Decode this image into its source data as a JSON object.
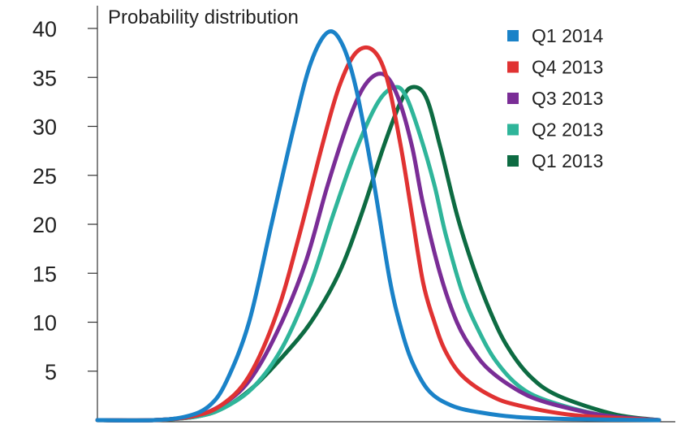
{
  "chart_data": {
    "type": "line",
    "title": "Probability distribution",
    "xlabel": "",
    "ylabel": "",
    "ylim": [
      0,
      40
    ],
    "xlim": [
      0,
      100
    ],
    "yticks": [
      5,
      10,
      15,
      20,
      25,
      30,
      35,
      40
    ],
    "ytick_labels": [
      "5",
      "10",
      "15",
      "20",
      "25",
      "30",
      "35",
      "40"
    ],
    "legend_position": "top-right",
    "grid": false,
    "series": [
      {
        "name": "Q1 2014",
        "color": "#1a82c8",
        "x": [
          0,
          10,
          16,
          20,
          23,
          27,
          31,
          35,
          38,
          41,
          43.5,
          46,
          49,
          52,
          54,
          56,
          59,
          63,
          68,
          75,
          85,
          100
        ],
        "y": [
          0,
          0,
          0.4,
          1.5,
          4,
          10,
          20,
          30,
          36.5,
          39.6,
          38.5,
          34,
          25,
          14.5,
          9.5,
          6,
          3,
          1.5,
          0.8,
          0.3,
          0.1,
          0
        ]
      },
      {
        "name": "Q4 2013",
        "color": "#e03232",
        "x": [
          0,
          10,
          17,
          22,
          27,
          32,
          36,
          40,
          43,
          46,
          49,
          51.5,
          54,
          56,
          58,
          60,
          62,
          65,
          70,
          75,
          85,
          100
        ],
        "y": [
          0,
          0,
          0.4,
          1.5,
          4.5,
          11,
          19,
          28,
          34,
          37.5,
          37.8,
          35,
          28,
          21,
          14,
          10,
          7,
          4.5,
          2.5,
          1.5,
          0.5,
          0
        ]
      },
      {
        "name": "Q3 2013",
        "color": "#7a2d96",
        "x": [
          0,
          10,
          17,
          22,
          27,
          32,
          37,
          41,
          45,
          48,
          51,
          53.5,
          56,
          58,
          61,
          64,
          67,
          70,
          75,
          80,
          90,
          100
        ],
        "y": [
          0,
          0,
          0.4,
          1.5,
          4,
          9,
          16,
          24,
          31,
          34.5,
          35.3,
          33,
          28,
          22,
          15,
          10,
          7,
          5,
          3,
          1.8,
          0.5,
          0
        ]
      },
      {
        "name": "Q2 2013",
        "color": "#2fb59a",
        "x": [
          0,
          10,
          18,
          23,
          28,
          33,
          38,
          42,
          46,
          50,
          53,
          55,
          57.5,
          60,
          62,
          65,
          68,
          71,
          75,
          80,
          90,
          100
        ],
        "y": [
          0,
          0,
          0.4,
          1.4,
          3.5,
          7.5,
          14,
          21,
          27.5,
          32.5,
          34,
          33,
          29,
          24,
          19,
          13,
          9,
          6,
          3.5,
          2,
          0.5,
          0
        ]
      },
      {
        "name": "Q1 2013",
        "color": "#0d6b42",
        "x": [
          0,
          10,
          18,
          23,
          28,
          33,
          38,
          43,
          47,
          51,
          54,
          56,
          58.5,
          61,
          64,
          67,
          70,
          73,
          77,
          82,
          92,
          100
        ],
        "y": [
          0,
          0,
          0.4,
          1.4,
          3.5,
          6.5,
          10,
          15,
          21,
          28,
          32.5,
          34,
          33,
          28,
          21,
          15.5,
          11,
          7.5,
          4.5,
          2.5,
          0.6,
          0
        ]
      }
    ]
  }
}
